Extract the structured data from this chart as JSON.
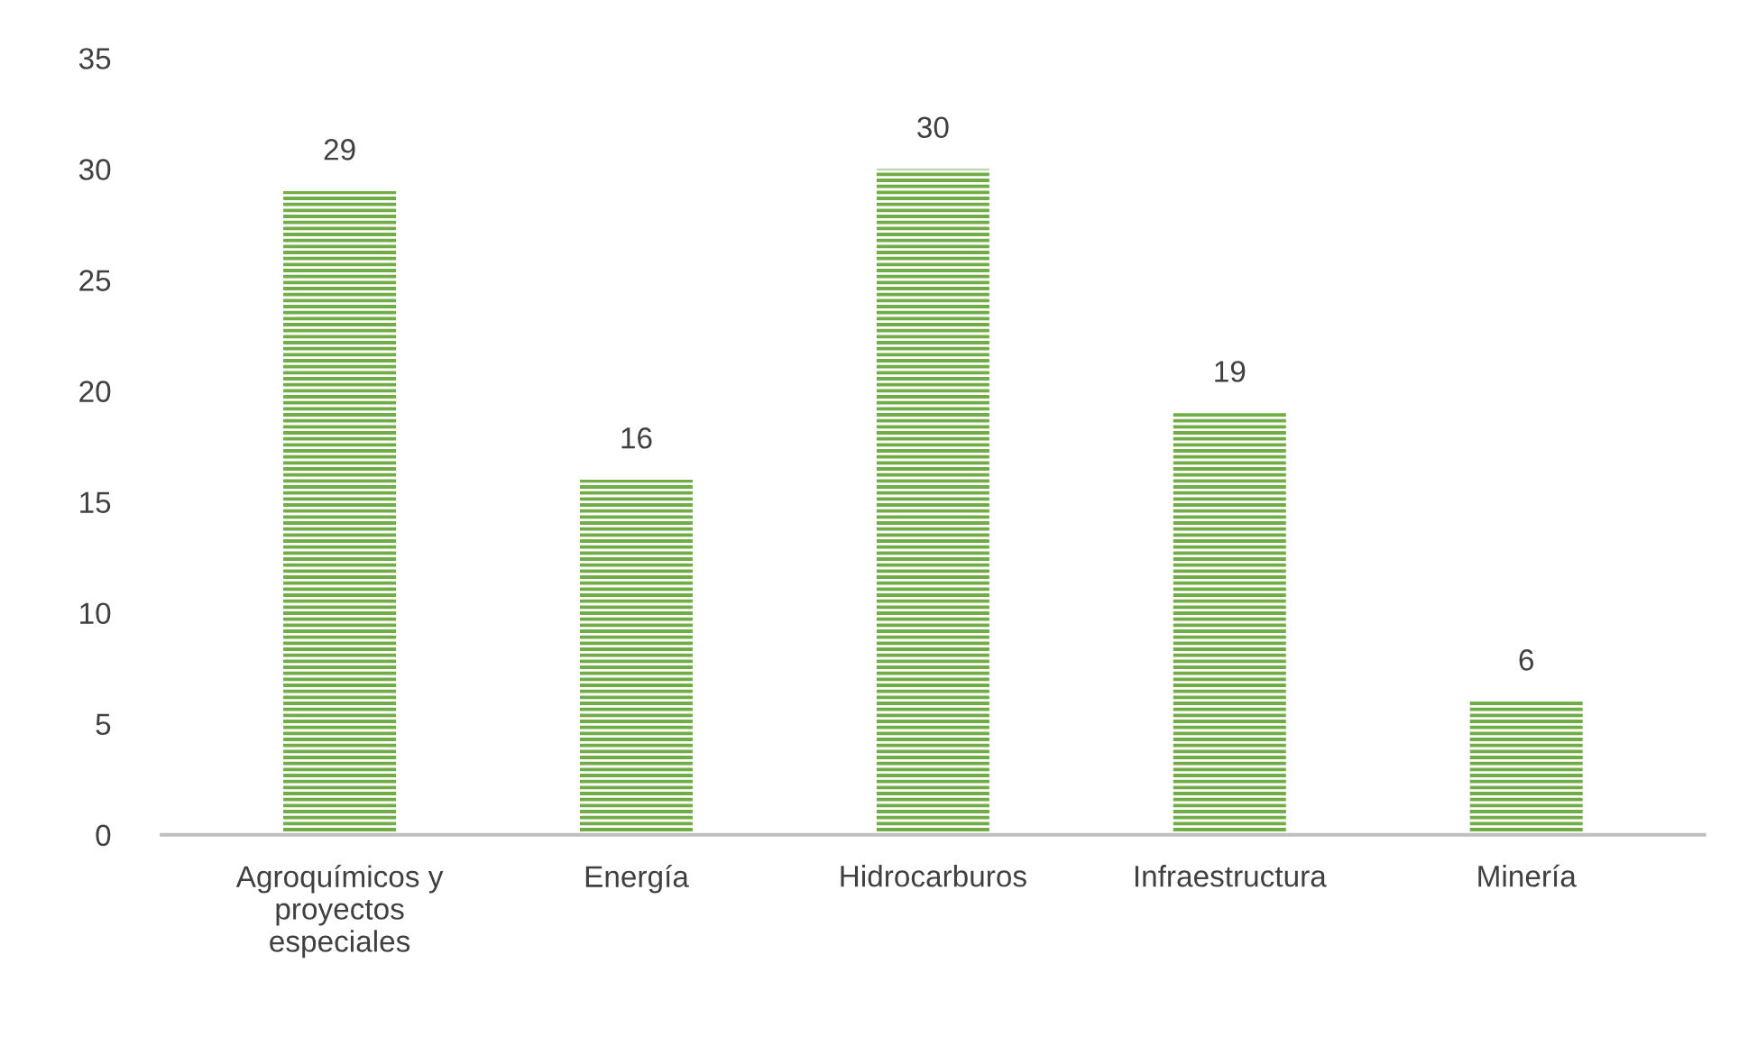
{
  "chart_data": {
    "type": "bar",
    "categories": [
      "Agroquímicos y\nproyectos\nespeciales",
      "Energía",
      "Hidrocarburos",
      "Infraestructura",
      "Minería"
    ],
    "values": [
      29,
      16,
      30,
      19,
      6
    ],
    "color": "#70ad47",
    "ylim": [
      0,
      35
    ],
    "yticks": [
      0,
      5,
      10,
      15,
      20,
      25,
      30,
      35
    ],
    "data_labels": true,
    "grid": false,
    "legend": false
  }
}
